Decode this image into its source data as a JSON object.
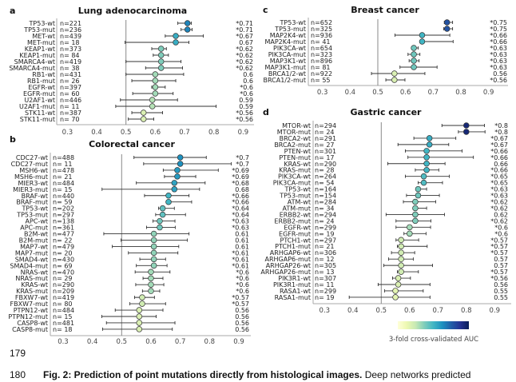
{
  "colormap": {
    "min": 0.5,
    "max": 0.82,
    "stops": [
      "#ffffd9",
      "#edf8b1",
      "#c7e9b4",
      "#7fcdbb",
      "#41b6c4",
      "#1d91c0",
      "#225ea8",
      "#253494",
      "#081d58"
    ]
  },
  "colorbar_label": "3-fold cross-validated AUC",
  "page_numbers": [
    "179",
    "180"
  ],
  "caption": {
    "bold": "Fig. 2: Prediction of point mutations directly from histological images.",
    "rest": " Deep networks predicted"
  },
  "chart_data": [
    {
      "type": "forest",
      "letter": "a",
      "title": "Lung adenocarcinoma",
      "xticks": [
        "0.3",
        "0.4",
        "0.5",
        "0.6",
        "0.7",
        "0.8",
        "0.9"
      ],
      "reference": 0.5,
      "rows": [
        {
          "label": "TP53-wt",
          "n": "n=221",
          "auc": 0.71,
          "lo": 0.677,
          "hi": 0.723,
          "text": "*0.71"
        },
        {
          "label": "TP53-mut",
          "n": "n=236",
          "auc": 0.71,
          "lo": 0.688,
          "hi": 0.726,
          "text": "*0.71"
        },
        {
          "label": "MET-wt",
          "n": "n=439",
          "auc": 0.67,
          "lo": 0.634,
          "hi": 0.764,
          "text": "*0.67"
        },
        {
          "label": "MET-mut",
          "n": "n= 18",
          "auc": 0.67,
          "lo": 0.497,
          "hi": 0.715,
          "text": "0.67"
        },
        {
          "label": "KEAP1-wt",
          "n": "n=373",
          "auc": 0.62,
          "lo": 0.588,
          "hi": 0.638,
          "text": "*0.62"
        },
        {
          "label": "KEAP1-mut",
          "n": "n= 84",
          "auc": 0.62,
          "lo": 0.593,
          "hi": 0.645,
          "text": "*0.62"
        },
        {
          "label": "SMARCA4-wt",
          "n": "n=419",
          "auc": 0.62,
          "lo": 0.5,
          "hi": 0.688,
          "text": "*0.62"
        },
        {
          "label": "SMARCA4-mut",
          "n": "n= 38",
          "auc": 0.62,
          "lo": 0.567,
          "hi": 0.693,
          "text": "*0.62"
        },
        {
          "label": "RB1-wt",
          "n": "n=431",
          "auc": 0.6,
          "lo": 0.5,
          "hi": 0.697,
          "text": "0.6"
        },
        {
          "label": "RB1-mut",
          "n": "n= 26",
          "auc": 0.6,
          "lo": 0.52,
          "hi": 0.67,
          "text": "0.6"
        },
        {
          "label": "EGFR-wt",
          "n": "n=397",
          "auc": 0.6,
          "lo": 0.588,
          "hi": 0.634,
          "text": "*0.6"
        },
        {
          "label": "EGFR-mut",
          "n": "n= 60",
          "auc": 0.6,
          "lo": 0.523,
          "hi": 0.661,
          "text": "*0.6"
        },
        {
          "label": "U2AF1-wt",
          "n": "n=446",
          "auc": 0.59,
          "lo": 0.481,
          "hi": 0.676,
          "text": "0.59"
        },
        {
          "label": "U2AF1-mut",
          "n": "n= 11",
          "auc": 0.59,
          "lo": 0.465,
          "hi": 0.808,
          "text": "0.59"
        },
        {
          "label": "STK11-wt",
          "n": "n=387",
          "auc": 0.56,
          "lo": 0.52,
          "hi": 0.625,
          "text": "*0.56"
        },
        {
          "label": "STK11-mut",
          "n": "n= 70",
          "auc": 0.56,
          "lo": 0.508,
          "hi": 0.595,
          "text": "*0.56"
        }
      ]
    },
    {
      "type": "forest",
      "letter": "b",
      "title": "Colorectal cancer",
      "xticks": [
        "0.3",
        "0.4",
        "0.5",
        "0.6",
        "0.7",
        "0.8",
        "0.9"
      ],
      "reference": 0.5,
      "rows": [
        {
          "label": "CDC27-wt",
          "n": "n=488",
          "auc": 0.7,
          "lo": 0.542,
          "hi": 0.789,
          "text": "*0.7"
        },
        {
          "label": "CDC27-mut",
          "n": "n= 11",
          "auc": 0.7,
          "lo": 0.575,
          "hi": 0.874,
          "text": "*0.7"
        },
        {
          "label": "MSH6-wt",
          "n": "n=478",
          "auc": 0.69,
          "lo": 0.642,
          "hi": 0.83,
          "text": "*0.69"
        },
        {
          "label": "MSH6-mut",
          "n": "n= 21",
          "auc": 0.69,
          "lo": 0.646,
          "hi": 0.753,
          "text": "*0.69"
        },
        {
          "label": "MIER3-wt",
          "n": "n=484",
          "auc": 0.68,
          "lo": 0.55,
          "hi": 0.785,
          "text": "*0.68"
        },
        {
          "label": "MIER3-mut",
          "n": "n= 15",
          "auc": 0.68,
          "lo": 0.433,
          "hi": 0.766,
          "text": "0.68"
        },
        {
          "label": "BRAF-wt",
          "n": "n=440",
          "auc": 0.66,
          "lo": 0.578,
          "hi": 0.73,
          "text": "*0.66"
        },
        {
          "label": "BRAF-mut",
          "n": "n= 59",
          "auc": 0.66,
          "lo": 0.668,
          "hi": 0.739,
          "text": "*0.66"
        },
        {
          "label": "TP53-wt",
          "n": "n=202",
          "auc": 0.64,
          "lo": 0.626,
          "hi": 0.68,
          "text": "*0.64"
        },
        {
          "label": "TP53-mut",
          "n": "n=297",
          "auc": 0.64,
          "lo": 0.616,
          "hi": 0.718,
          "text": "*0.64"
        },
        {
          "label": "APC-wt",
          "n": "n=138",
          "auc": 0.63,
          "lo": 0.607,
          "hi": 0.682,
          "text": "*0.63"
        },
        {
          "label": "APC-mut",
          "n": "n=361",
          "auc": 0.63,
          "lo": 0.585,
          "hi": 0.683,
          "text": "*0.63"
        },
        {
          "label": "B2M-wt",
          "n": "n=477",
          "auc": 0.61,
          "lo": 0.439,
          "hi": 0.73,
          "text": "0.61"
        },
        {
          "label": "B2M-mut",
          "n": "n= 22",
          "auc": 0.61,
          "lo": 0.498,
          "hi": 0.724,
          "text": "0.61"
        },
        {
          "label": "MAP7-wt",
          "n": "n=479",
          "auc": 0.61,
          "lo": 0.468,
          "hi": 0.695,
          "text": "0.61"
        },
        {
          "label": "MAP7-mut",
          "n": "n= 20",
          "auc": 0.61,
          "lo": 0.523,
          "hi": 0.692,
          "text": "*0.61"
        },
        {
          "label": "SMAD4-wt",
          "n": "n=430",
          "auc": 0.61,
          "lo": 0.562,
          "hi": 0.65,
          "text": "*0.61"
        },
        {
          "label": "SMAD4-mut",
          "n": "n= 69",
          "auc": 0.61,
          "lo": 0.55,
          "hi": 0.655,
          "text": "*0.61"
        },
        {
          "label": "NRAS-wt",
          "n": "n=470",
          "auc": 0.6,
          "lo": 0.546,
          "hi": 0.665,
          "text": "*0.6"
        },
        {
          "label": "NRAS-mut",
          "n": "n= 29",
          "auc": 0.6,
          "lo": 0.573,
          "hi": 0.641,
          "text": "*0.6"
        },
        {
          "label": "KRAS-wt",
          "n": "n=290",
          "auc": 0.6,
          "lo": 0.548,
          "hi": 0.644,
          "text": "*0.6"
        },
        {
          "label": "KRAS-mut",
          "n": "n=209",
          "auc": 0.6,
          "lo": 0.571,
          "hi": 0.63,
          "text": "*0.6"
        },
        {
          "label": "FBXW7-wt",
          "n": "n=419",
          "auc": 0.57,
          "lo": 0.544,
          "hi": 0.612,
          "text": "*0.57"
        },
        {
          "label": "FBXW7-mut",
          "n": "n= 80",
          "auc": 0.57,
          "lo": 0.528,
          "hi": 0.65,
          "text": "*0.57"
        },
        {
          "label": "PTPN12-wt",
          "n": "n=484",
          "auc": 0.56,
          "lo": 0.478,
          "hi": 0.641,
          "text": "0.56"
        },
        {
          "label": "PTPN12-mut",
          "n": "n= 15",
          "auc": 0.56,
          "lo": 0.432,
          "hi": 0.618,
          "text": "0.56"
        },
        {
          "label": "CASP8-wt",
          "n": "n=481",
          "auc": 0.56,
          "lo": 0.448,
          "hi": 0.682,
          "text": "0.56"
        },
        {
          "label": "CASP8-mut",
          "n": "n= 18",
          "auc": 0.56,
          "lo": 0.435,
          "hi": 0.673,
          "text": "0.56"
        }
      ]
    },
    {
      "type": "forest",
      "letter": "c",
      "title": "Breast cancer",
      "xticks": [
        "0.3",
        "0.4",
        "0.5",
        "0.6",
        "0.7",
        "0.8",
        "0.9"
      ],
      "reference": 0.5,
      "rows": [
        {
          "label": "TP53-wt",
          "n": "n=652",
          "auc": 0.75,
          "lo": 0.74,
          "hi": 0.77,
          "text": "*0.75"
        },
        {
          "label": "TP53-mut",
          "n": "n=325",
          "auc": 0.75,
          "lo": 0.738,
          "hi": 0.77,
          "text": "*0.75"
        },
        {
          "label": "MAP2K4-wt",
          "n": "n=936",
          "auc": 0.66,
          "lo": 0.562,
          "hi": 0.76,
          "text": "*0.66"
        },
        {
          "label": "MAP2K4-mut",
          "n": "n= 41",
          "auc": 0.66,
          "lo": 0.664,
          "hi": 0.772,
          "text": "*0.66"
        },
        {
          "label": "PIK3CA-wt",
          "n": "n=654",
          "auc": 0.63,
          "lo": 0.622,
          "hi": 0.646,
          "text": "*0.63"
        },
        {
          "label": "PIK3CA-mut",
          "n": "n=323",
          "auc": 0.63,
          "lo": 0.609,
          "hi": 0.652,
          "text": "*0.63"
        },
        {
          "label": "MAP3K1-wt",
          "n": "n=896",
          "auc": 0.63,
          "lo": 0.613,
          "hi": 0.649,
          "text": "*0.63"
        },
        {
          "label": "MAP3K1-mut",
          "n": "n= 81",
          "auc": 0.63,
          "lo": 0.58,
          "hi": 0.714,
          "text": "*0.63"
        },
        {
          "label": "BRCA1/2-wt",
          "n": "n=922",
          "auc": 0.56,
          "lo": 0.477,
          "hi": 0.67,
          "text": "0.56"
        },
        {
          "label": "BRCA1/2-mut",
          "n": "n= 55",
          "auc": 0.56,
          "lo": 0.529,
          "hi": 0.598,
          "text": "*0.56"
        }
      ]
    },
    {
      "type": "forest",
      "letter": "d",
      "title": "Gastric cancer",
      "xticks": [
        "0.3",
        "0.4",
        "0.5",
        "0.6",
        "0.7",
        "0.8",
        "0.9"
      ],
      "reference": 0.5,
      "rows": [
        {
          "label": "MTOR-wt",
          "n": "n=294",
          "auc": 0.8,
          "lo": 0.714,
          "hi": 0.864,
          "text": "*0.8"
        },
        {
          "label": "MTOR-mut",
          "n": "n= 24",
          "auc": 0.8,
          "lo": 0.772,
          "hi": 0.866,
          "text": "*0.8"
        },
        {
          "label": "BRCA2-wt",
          "n": "n=291",
          "auc": 0.67,
          "lo": 0.615,
          "hi": 0.763,
          "text": "*0.67"
        },
        {
          "label": "BRCA2-mut",
          "n": "n= 27",
          "auc": 0.67,
          "lo": 0.559,
          "hi": 0.738,
          "text": "*0.67"
        },
        {
          "label": "PTEN-wt",
          "n": "n=301",
          "auc": 0.66,
          "lo": 0.585,
          "hi": 0.785,
          "text": "*0.66"
        },
        {
          "label": "PTEN-mut",
          "n": "n= 17",
          "auc": 0.66,
          "lo": 0.594,
          "hi": 0.825,
          "text": "*0.66"
        },
        {
          "label": "KRAS-wt",
          "n": "n=290",
          "auc": 0.66,
          "lo": 0.523,
          "hi": 0.725,
          "text": "0.66"
        },
        {
          "label": "KRAS-mut",
          "n": "n= 28",
          "auc": 0.66,
          "lo": 0.62,
          "hi": 0.703,
          "text": "*0.66"
        },
        {
          "label": "PIK3CA-wt",
          "n": "n=264",
          "auc": 0.65,
          "lo": 0.585,
          "hi": 0.74,
          "text": "*0.65"
        },
        {
          "label": "PIK3CA-mut",
          "n": "n= 54",
          "auc": 0.65,
          "lo": 0.63,
          "hi": 0.716,
          "text": "*0.65"
        },
        {
          "label": "TP53-wt",
          "n": "n=164",
          "auc": 0.63,
          "lo": 0.631,
          "hi": 0.66,
          "text": "*0.63"
        },
        {
          "label": "TP53-mut",
          "n": "n=154",
          "auc": 0.63,
          "lo": 0.589,
          "hi": 0.705,
          "text": "*0.63"
        },
        {
          "label": "ATM-wt",
          "n": "n=284",
          "auc": 0.62,
          "lo": 0.578,
          "hi": 0.692,
          "text": "*0.62"
        },
        {
          "label": "ATM-mut",
          "n": "n= 34",
          "auc": 0.62,
          "lo": 0.618,
          "hi": 0.66,
          "text": "*0.62"
        },
        {
          "label": "ERBB2-wt",
          "n": "n=294",
          "auc": 0.62,
          "lo": 0.517,
          "hi": 0.723,
          "text": "0.62"
        },
        {
          "label": "ERBB2-mut",
          "n": "n= 24",
          "auc": 0.62,
          "lo": 0.552,
          "hi": 0.675,
          "text": "*0.62"
        },
        {
          "label": "EGFR-wt",
          "n": "n=299",
          "auc": 0.6,
          "lo": 0.552,
          "hi": 0.674,
          "text": "*0.6"
        },
        {
          "label": "EGFR-mut",
          "n": "n= 19",
          "auc": 0.6,
          "lo": 0.58,
          "hi": 0.658,
          "text": "*0.6"
        },
        {
          "label": "PTCH1-wt",
          "n": "n=297",
          "auc": 0.57,
          "lo": 0.552,
          "hi": 0.632,
          "text": "*0.57"
        },
        {
          "label": "PTCH1-mut",
          "n": "n= 21",
          "auc": 0.57,
          "lo": 0.557,
          "hi": 0.662,
          "text": "*0.57"
        },
        {
          "label": "ARHGAP6-wt",
          "n": "n=306",
          "auc": 0.57,
          "lo": 0.536,
          "hi": 0.618,
          "text": "*0.57"
        },
        {
          "label": "ARHGAP6-mut",
          "n": "n= 12",
          "auc": 0.57,
          "lo": 0.526,
          "hi": 0.613,
          "text": "0.57"
        },
        {
          "label": "ARHGAP26-wt",
          "n": "n=305",
          "auc": 0.57,
          "lo": 0.509,
          "hi": 0.681,
          "text": "0.57"
        },
        {
          "label": "ARHGAP26-mut",
          "n": "n= 13",
          "auc": 0.57,
          "lo": 0.557,
          "hi": 0.631,
          "text": "*0.57"
        },
        {
          "label": "PIK3R1-wt",
          "n": "n=307",
          "auc": 0.56,
          "lo": 0.54,
          "hi": 0.603,
          "text": "*0.56"
        },
        {
          "label": "PIK3R1-mut",
          "n": "n= 11",
          "auc": 0.56,
          "lo": 0.489,
          "hi": 0.672,
          "text": "0.56"
        },
        {
          "label": "RASA1-wt",
          "n": "n=299",
          "auc": 0.55,
          "lo": 0.512,
          "hi": 0.648,
          "text": "0.55"
        },
        {
          "label": "RASA1-mut",
          "n": "n= 19",
          "auc": 0.55,
          "lo": 0.387,
          "hi": 0.672,
          "text": "0.55"
        }
      ]
    }
  ]
}
